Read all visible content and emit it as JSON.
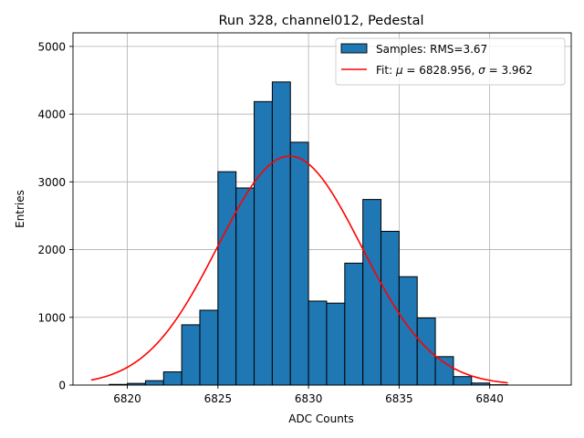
{
  "chart_data": {
    "type": "bar",
    "title": "Run 328, channel012, Pedestal",
    "xlabel": "ADC Counts",
    "ylabel": "Entries",
    "xlim": [
      6817,
      6844.5
    ],
    "ylim": [
      0,
      5200
    ],
    "xticks": [
      6820,
      6825,
      6830,
      6835,
      6840
    ],
    "yticks": [
      0,
      1000,
      2000,
      3000,
      4000,
      5000
    ],
    "grid": true,
    "legend_position": "top-right",
    "histogram": {
      "name": "Samples: RMS=3.67",
      "color": "#1f77b4",
      "edgecolor": "#000000",
      "bin_edges": [
        6819,
        6820,
        6821,
        6822,
        6823,
        6824,
        6825,
        6826,
        6827,
        6828,
        6829,
        6830,
        6831,
        6832,
        6833,
        6834,
        6835,
        6836,
        6837,
        6838,
        6839,
        6840,
        6841
      ],
      "counts": [
        10,
        25,
        65,
        195,
        890,
        1105,
        3150,
        2910,
        4185,
        4475,
        3585,
        1240,
        1210,
        1800,
        2740,
        2270,
        1600,
        990,
        420,
        125,
        30,
        5
      ]
    },
    "fit": {
      "name": "Fit: μ = 6828.956, σ = 3.962",
      "color": "#ff0000",
      "mu": 6828.956,
      "sigma": 3.962,
      "amplitude": 3380,
      "x_range": [
        6818,
        6841
      ]
    }
  },
  "title_prefix": "Fit: ",
  "legend_mu": "μ",
  "legend_mu_value": " = 6828.956, ",
  "legend_sigma": "σ",
  "legend_sigma_value": " = 3.962"
}
